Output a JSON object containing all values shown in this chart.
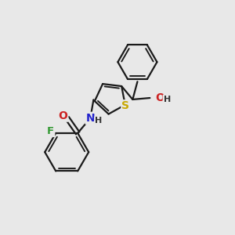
{
  "bg_color": "#e8e8e8",
  "bond_color": "#1a1a1a",
  "bond_width": 1.6,
  "atom_colors": {
    "S": "#c8a800",
    "N": "#2222cc",
    "O": "#cc2222",
    "F": "#339933",
    "C": "#1a1a1a",
    "H": "#333333"
  },
  "font_size": 10
}
